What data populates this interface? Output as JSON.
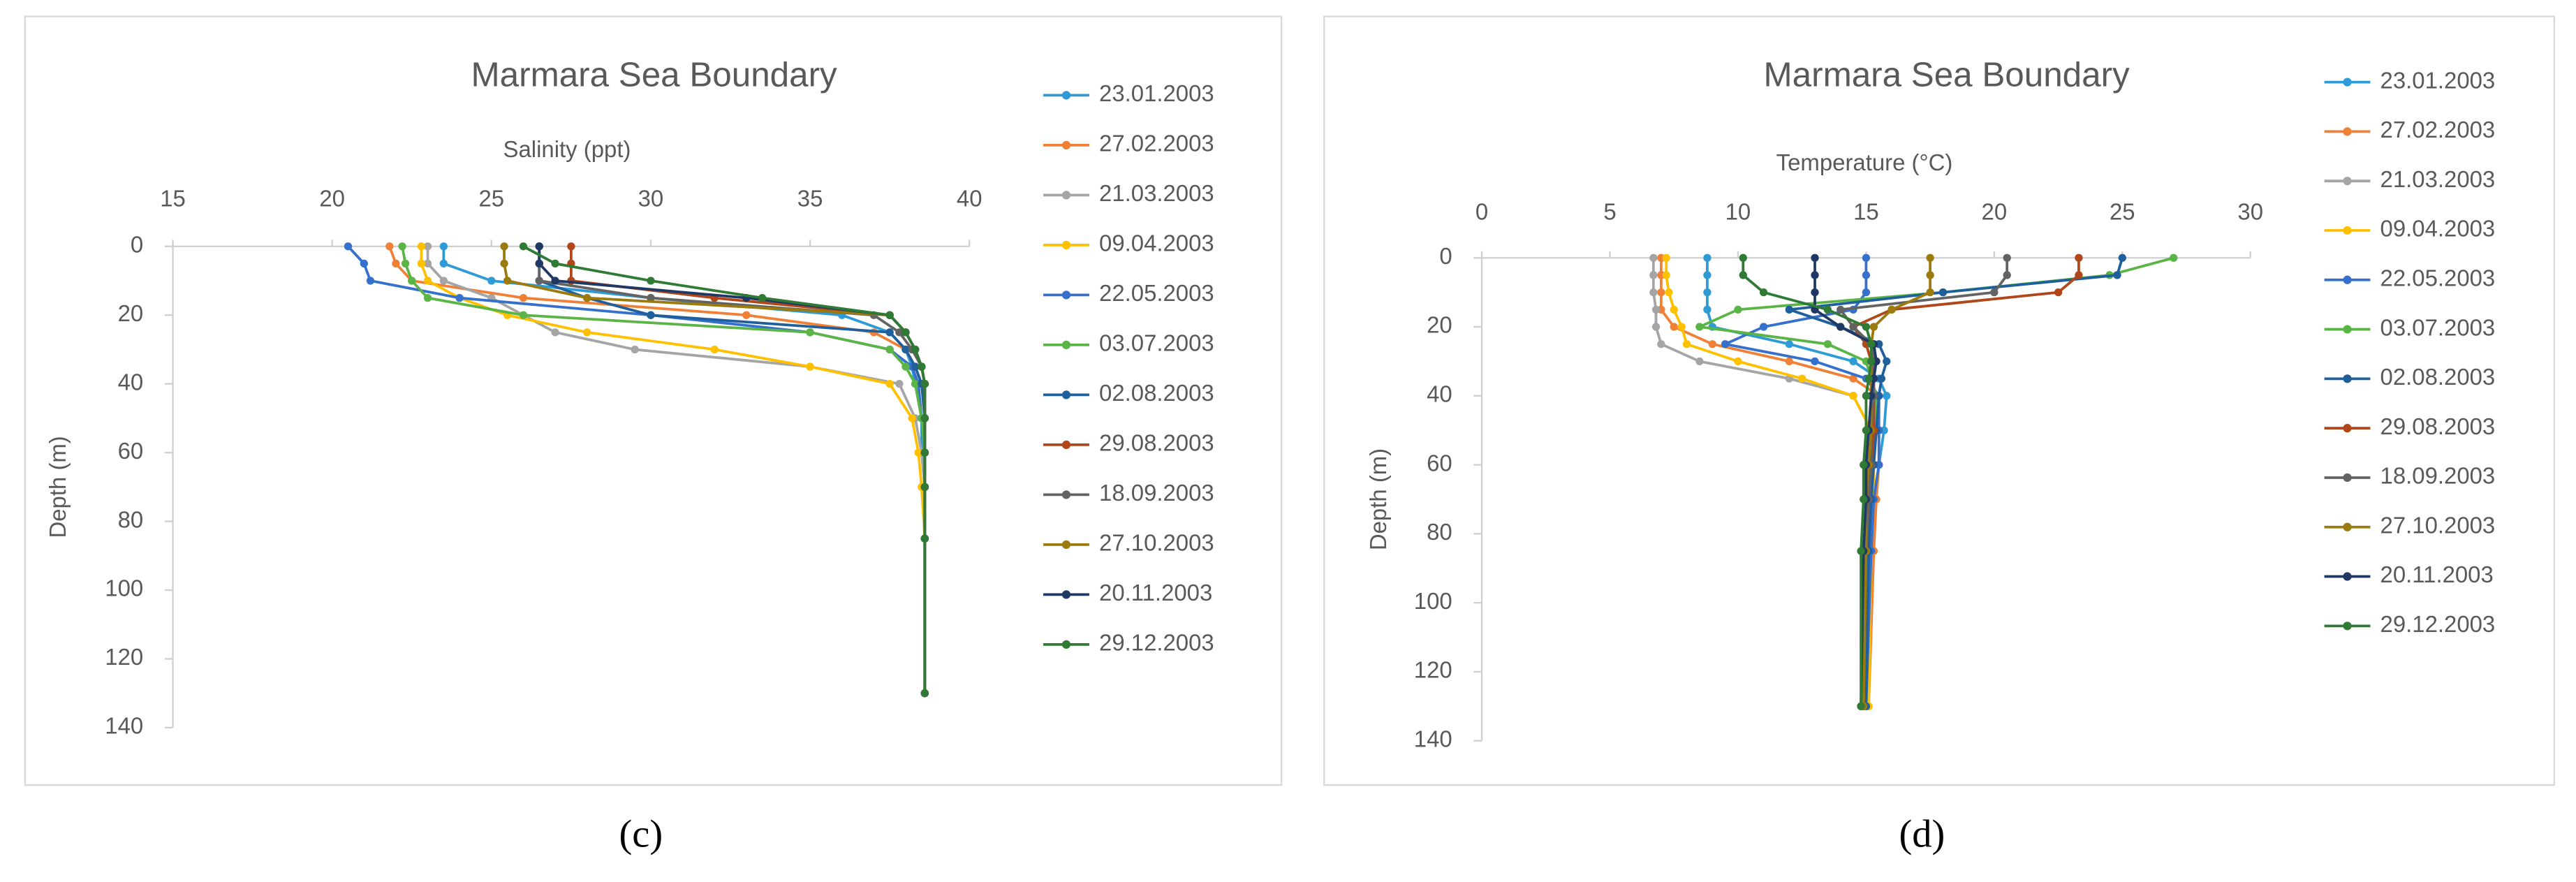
{
  "chart_data": [
    {
      "type": "line",
      "title": "Marmara Sea Boundary",
      "xlabel": "Salinity (ppt)",
      "ylabel": "Depth (m)",
      "caption": "(c)",
      "xlim": [
        15,
        40
      ],
      "xticks": [
        15,
        20,
        25,
        30,
        35,
        40
      ],
      "ylim": [
        0,
        140
      ],
      "yticks": [
        0,
        20,
        40,
        60,
        80,
        100,
        120,
        140
      ],
      "depths": [
        0,
        5,
        10,
        15,
        20,
        25,
        30,
        35,
        40,
        50,
        60,
        70,
        85,
        130
      ],
      "series": [
        {
          "name": "23.01.2003",
          "color": "#2e9bd6",
          "values": [
            23.5,
            23.5,
            25,
            30,
            36,
            37.5,
            38,
            38.2,
            38.3,
            38.5,
            38.5,
            38.6,
            38.6,
            38.6
          ]
        },
        {
          "name": "27.02.2003",
          "color": "#f08035",
          "values": [
            21.8,
            22,
            22.5,
            26,
            33,
            37,
            38,
            38.3,
            38.5,
            38.6,
            38.6,
            38.6,
            38.6,
            38.6
          ]
        },
        {
          "name": "21.03.2003",
          "color": "#a5a5a5",
          "values": [
            23,
            23,
            23.5,
            25,
            26,
            27,
            29.5,
            35,
            37.8,
            38.3,
            38.5,
            38.6,
            38.6,
            38.6
          ]
        },
        {
          "name": "09.04.2003",
          "color": "#ffc000",
          "values": [
            22.8,
            22.8,
            23,
            24,
            25.5,
            28,
            32,
            35,
            37.5,
            38.2,
            38.4,
            38.5,
            38.6,
            38.6
          ]
        },
        {
          "name": "22.05.2003",
          "color": "#3570cc",
          "values": [
            20.5,
            21,
            21.2,
            24,
            30,
            35,
            37.5,
            38.2,
            38.4,
            38.5,
            38.6,
            38.6,
            38.6,
            38.6
          ]
        },
        {
          "name": "03.07.2003",
          "color": "#5ab546",
          "values": [
            22.2,
            22.3,
            22.5,
            23,
            26,
            35,
            37.5,
            38,
            38.3,
            38.5,
            38.6,
            38.6,
            38.6,
            38.6
          ]
        },
        {
          "name": "02.08.2003",
          "color": "#1e5f9c",
          "values": [
            26.5,
            26.5,
            26.5,
            28,
            30,
            37.5,
            38,
            38.3,
            38.5,
            38.6,
            38.6,
            38.6,
            38.6,
            38.6
          ]
        },
        {
          "name": "29.08.2003",
          "color": "#b0461a",
          "values": [
            27.5,
            27.5,
            27.5,
            32,
            37.5,
            38,
            38.3,
            38.5,
            38.6,
            38.6,
            38.6,
            38.6,
            38.6,
            38.6
          ]
        },
        {
          "name": "18.09.2003",
          "color": "#636363",
          "values": [
            26.5,
            26.5,
            26.5,
            30,
            37,
            37.8,
            38.2,
            38.5,
            38.6,
            38.6,
            38.6,
            38.6,
            38.6,
            38.6
          ]
        },
        {
          "name": "27.10.2003",
          "color": "#9b7a0e",
          "values": [
            25.4,
            25.4,
            25.5,
            28,
            37.5,
            38,
            38.3,
            38.5,
            38.6,
            38.6,
            38.6,
            38.6,
            38.6,
            38.6
          ]
        },
        {
          "name": "20.11.2003",
          "color": "#1f3864",
          "values": [
            26.5,
            26.5,
            27,
            33,
            37.5,
            38,
            38.3,
            38.5,
            38.6,
            38.6,
            38.6,
            38.6,
            38.6,
            38.6
          ]
        },
        {
          "name": "29.12.2003",
          "color": "#2f7a34",
          "values": [
            26,
            27,
            30,
            33.5,
            37.5,
            38,
            38.3,
            38.5,
            38.6,
            38.6,
            38.6,
            38.6,
            38.6,
            38.6
          ]
        }
      ]
    },
    {
      "type": "line",
      "title": "Marmara Sea Boundary",
      "xlabel": "Temperature (°C)",
      "ylabel": "Depth (m)",
      "caption": "(d)",
      "xlim": [
        0,
        30
      ],
      "xticks": [
        0,
        5,
        10,
        15,
        20,
        25,
        30
      ],
      "ylim": [
        0,
        140
      ],
      "yticks": [
        0,
        20,
        40,
        60,
        80,
        100,
        120,
        140
      ],
      "depths": [
        0,
        5,
        10,
        15,
        20,
        25,
        30,
        35,
        40,
        50,
        60,
        70,
        85,
        130
      ],
      "series": [
        {
          "name": "23.01.2003",
          "color": "#2e9bd6",
          "values": [
            8.8,
            8.8,
            8.8,
            8.8,
            9,
            12,
            14.5,
            15.5,
            15.8,
            15.7,
            15.5,
            15.3,
            15.2,
            15
          ]
        },
        {
          "name": "27.02.2003",
          "color": "#f08035",
          "values": [
            7,
            7,
            7,
            7,
            7.5,
            9,
            12,
            14.5,
            15.5,
            15.5,
            15.5,
            15.4,
            15.3,
            15.1
          ]
        },
        {
          "name": "21.03.2003",
          "color": "#a5a5a5",
          "values": [
            6.7,
            6.7,
            6.7,
            6.8,
            6.8,
            7,
            8.5,
            12,
            14.5,
            15.2,
            15.2,
            15.2,
            15.2,
            15
          ]
        },
        {
          "name": "09.04.2003",
          "color": "#ffc000",
          "values": [
            7.2,
            7.2,
            7.3,
            7.5,
            7.8,
            8,
            10,
            12.5,
            14.5,
            15.2,
            15.3,
            15.3,
            15.2,
            15.1
          ]
        },
        {
          "name": "22.05.2003",
          "color": "#3570cc",
          "values": [
            15,
            15,
            15,
            14.5,
            11,
            9.5,
            13,
            15,
            15.5,
            15.5,
            15.5,
            15.3,
            15.2,
            15
          ]
        },
        {
          "name": "03.07.2003",
          "color": "#5ab546",
          "values": [
            27,
            24.5,
            18,
            10,
            8.5,
            13.5,
            15,
            15.2,
            15.4,
            15.3,
            15.2,
            15,
            15,
            15
          ]
        },
        {
          "name": "02.08.2003",
          "color": "#1e5f9c",
          "values": [
            25,
            24.8,
            18,
            12,
            14,
            15.5,
            15.8,
            15.6,
            15.5,
            15.4,
            15.3,
            15.2,
            15.1,
            15
          ]
        },
        {
          "name": "29.08.2003",
          "color": "#b0461a",
          "values": [
            23.3,
            23.3,
            22.5,
            16,
            14.5,
            15,
            15.2,
            15.3,
            15.3,
            15.3,
            15.2,
            15.1,
            15,
            14.9
          ]
        },
        {
          "name": "18.09.2003",
          "color": "#636363",
          "values": [
            20.5,
            20.5,
            20,
            14,
            14.5,
            15.2,
            15.3,
            15.3,
            15.3,
            15.2,
            15.2,
            15.1,
            15,
            14.9
          ]
        },
        {
          "name": "27.10.2003",
          "color": "#9b7a0e",
          "values": [
            17.5,
            17.5,
            17.5,
            16,
            15.3,
            15.2,
            15.2,
            15.2,
            15.2,
            15.2,
            15.1,
            15,
            15,
            14.9
          ]
        },
        {
          "name": "20.11.2003",
          "color": "#1f3864",
          "values": [
            13,
            13,
            13,
            13,
            14,
            15.3,
            15.4,
            15.3,
            15.2,
            15.1,
            15,
            15,
            14.9,
            14.8
          ]
        },
        {
          "name": "29.12.2003",
          "color": "#2f7a34",
          "values": [
            10.2,
            10.2,
            11,
            13.5,
            15,
            15.2,
            15.2,
            15.1,
            15,
            15,
            14.9,
            14.9,
            14.8,
            14.8
          ]
        }
      ]
    }
  ]
}
